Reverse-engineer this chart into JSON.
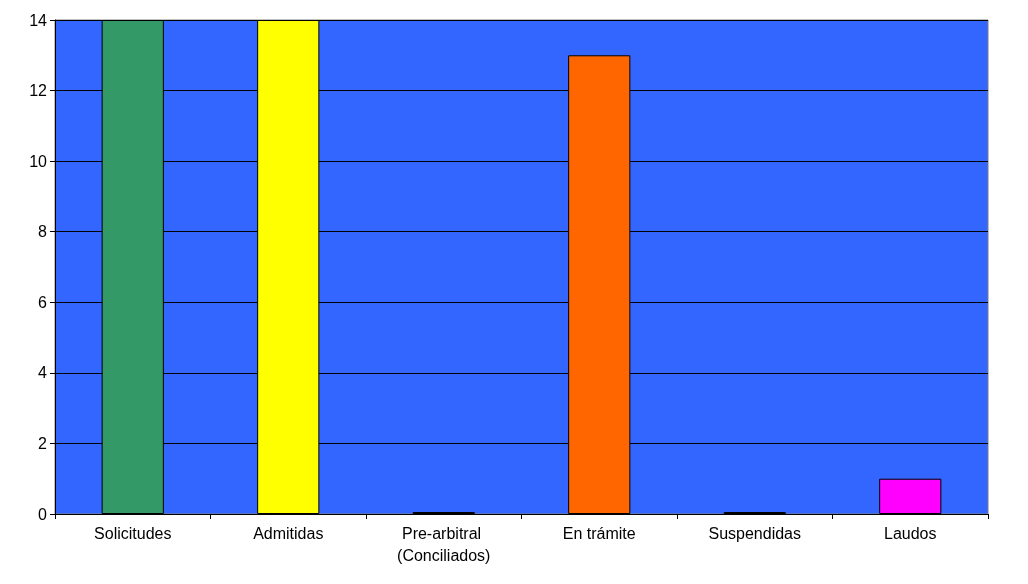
{
  "chart_data": {
    "type": "bar",
    "categories": [
      "Solicitudes",
      "Admitidas",
      "Pre-arbitral (Conciliados)",
      "En trámite",
      "Suspendidas",
      "Laudos"
    ],
    "values": [
      14,
      14,
      0,
      13,
      0,
      1
    ],
    "colors": [
      "#339966",
      "#ffff00",
      "#cc0000",
      "#ff6600",
      "#3366cc",
      "#ff00ff"
    ],
    "ylim": [
      0,
      14
    ],
    "yticks": [
      0,
      2,
      4,
      6,
      8,
      10,
      12,
      14
    ],
    "grid": "y"
  }
}
